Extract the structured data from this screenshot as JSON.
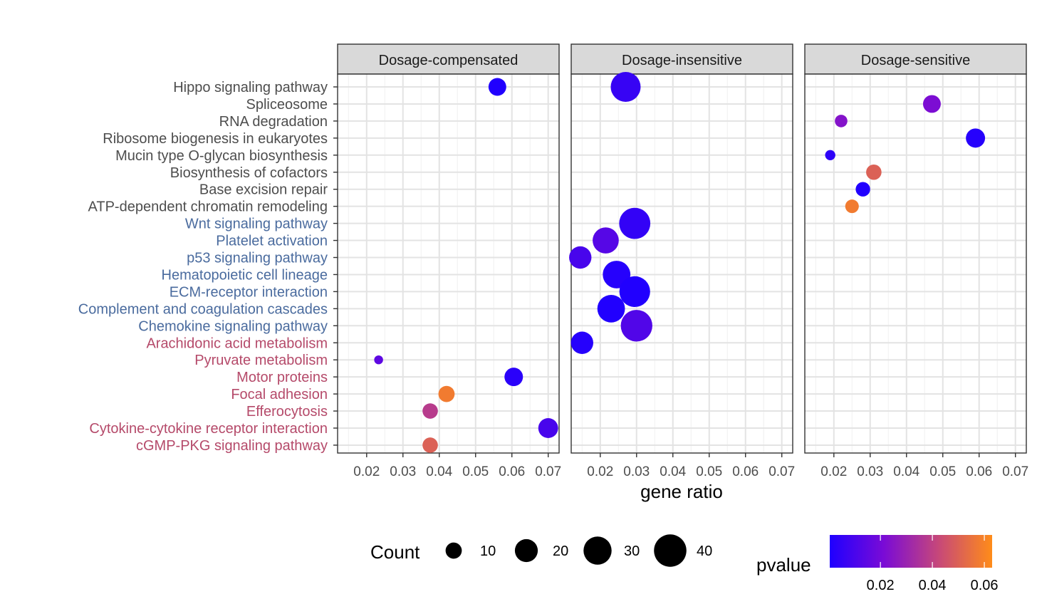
{
  "chart_data": {
    "type": "scatter",
    "subtype": "dot-plot (faceted)",
    "title": "",
    "xlabel": "gene ratio",
    "ylabel": "",
    "xlim": [
      0.012,
      0.073
    ],
    "x_ticks": [
      "0.02",
      "0.03",
      "0.04",
      "0.05",
      "0.06",
      "0.07"
    ],
    "x_tick_values": [
      0.02,
      0.03,
      0.04,
      0.05,
      0.06,
      0.07
    ],
    "grid": true,
    "facets": [
      "Dosage-compensated",
      "Dosage-insensitive",
      "Dosage-sensitive"
    ],
    "categories": [
      {
        "label": "Hippo signaling pathway",
        "color": "#4d4d4d"
      },
      {
        "label": "Spliceosome",
        "color": "#4d4d4d"
      },
      {
        "label": "RNA degradation",
        "color": "#4d4d4d"
      },
      {
        "label": "Ribosome biogenesis in eukaryotes",
        "color": "#4d4d4d"
      },
      {
        "label": "Mucin type O-glycan biosynthesis",
        "color": "#4d4d4d"
      },
      {
        "label": "Biosynthesis of cofactors",
        "color": "#4d4d4d"
      },
      {
        "label": "Base excision repair",
        "color": "#4d4d4d"
      },
      {
        "label": "ATP-dependent chromatin remodeling",
        "color": "#4d4d4d"
      },
      {
        "label": "Wnt signaling pathway",
        "color": "#4a6b9e"
      },
      {
        "label": "Platelet activation",
        "color": "#4a6b9e"
      },
      {
        "label": "p53 signaling pathway",
        "color": "#4a6b9e"
      },
      {
        "label": "Hematopoietic cell lineage",
        "color": "#4a6b9e"
      },
      {
        "label": "ECM-receptor interaction",
        "color": "#4a6b9e"
      },
      {
        "label": "Complement and coagulation cascades",
        "color": "#4a6b9e"
      },
      {
        "label": "Chemokine signaling pathway",
        "color": "#4a6b9e"
      },
      {
        "label": "Arachidonic acid metabolism",
        "color": "#b54a6a"
      },
      {
        "label": "Pyruvate metabolism",
        "color": "#b54a6a"
      },
      {
        "label": "Motor proteins",
        "color": "#b54a6a"
      },
      {
        "label": "Focal adhesion",
        "color": "#b54a6a"
      },
      {
        "label": "Efferocytosis",
        "color": "#b54a6a"
      },
      {
        "label": "Cytokine-cytokine receptor interaction",
        "color": "#b54a6a"
      },
      {
        "label": "cGMP-PKG signaling pathway",
        "color": "#b54a6a"
      }
    ],
    "points": [
      {
        "facet": "Dosage-compensated",
        "term": "Hippo signaling pathway",
        "x": 0.056,
        "count": 12,
        "pvalue": 0.001
      },
      {
        "facet": "Dosage-compensated",
        "term": "Pyruvate metabolism",
        "x": 0.0233,
        "count": 3,
        "pvalue": 0.015
      },
      {
        "facet": "Dosage-compensated",
        "term": "Motor proteins",
        "x": 0.0605,
        "count": 13,
        "pvalue": 0.003
      },
      {
        "facet": "Dosage-compensated",
        "term": "Focal adhesion",
        "x": 0.042,
        "count": 10,
        "pvalue": 0.058
      },
      {
        "facet": "Dosage-compensated",
        "term": "Efferocytosis",
        "x": 0.0375,
        "count": 9,
        "pvalue": 0.038
      },
      {
        "facet": "Dosage-compensated",
        "term": "Cytokine-cytokine receptor interaction",
        "x": 0.07,
        "count": 15,
        "pvalue": 0.01
      },
      {
        "facet": "Dosage-compensated",
        "term": "cGMP-PKG signaling pathway",
        "x": 0.0375,
        "count": 9,
        "pvalue": 0.05
      },
      {
        "facet": "Dosage-insensitive",
        "term": "Hippo signaling pathway",
        "x": 0.027,
        "count": 34,
        "pvalue": 0.006
      },
      {
        "facet": "Dosage-insensitive",
        "term": "Wnt signaling pathway",
        "x": 0.0295,
        "count": 37,
        "pvalue": 0.005
      },
      {
        "facet": "Dosage-insensitive",
        "term": "Platelet activation",
        "x": 0.0215,
        "count": 26,
        "pvalue": 0.013
      },
      {
        "facet": "Dosage-insensitive",
        "term": "p53 signaling pathway",
        "x": 0.0145,
        "count": 19,
        "pvalue": 0.01
      },
      {
        "facet": "Dosage-insensitive",
        "term": "Hematopoietic cell lineage",
        "x": 0.0245,
        "count": 29,
        "pvalue": 0.002
      },
      {
        "facet": "Dosage-insensitive",
        "term": "ECM-receptor interaction",
        "x": 0.0295,
        "count": 36,
        "pvalue": 0.001
      },
      {
        "facet": "Dosage-insensitive",
        "term": "Complement and coagulation cascades",
        "x": 0.023,
        "count": 29,
        "pvalue": 0.001
      },
      {
        "facet": "Dosage-insensitive",
        "term": "Chemokine signaling pathway",
        "x": 0.03,
        "count": 38,
        "pvalue": 0.012
      },
      {
        "facet": "Dosage-insensitive",
        "term": "Arachidonic acid metabolism",
        "x": 0.015,
        "count": 19,
        "pvalue": 0.002
      },
      {
        "facet": "Dosage-sensitive",
        "term": "Spliceosome",
        "x": 0.047,
        "count": 12,
        "pvalue": 0.022
      },
      {
        "facet": "Dosage-sensitive",
        "term": "RNA degradation",
        "x": 0.022,
        "count": 6,
        "pvalue": 0.024
      },
      {
        "facet": "Dosage-sensitive",
        "term": "Ribosome biogenesis in eukaryotes",
        "x": 0.059,
        "count": 14,
        "pvalue": 0.002
      },
      {
        "facet": "Dosage-sensitive",
        "term": "Mucin type O-glycan biosynthesis",
        "x": 0.019,
        "count": 4,
        "pvalue": 0.004
      },
      {
        "facet": "Dosage-sensitive",
        "term": "Biosynthesis of cofactors",
        "x": 0.031,
        "count": 9,
        "pvalue": 0.05
      },
      {
        "facet": "Dosage-sensitive",
        "term": "Base excision repair",
        "x": 0.028,
        "count": 8,
        "pvalue": 0.001
      },
      {
        "facet": "Dosage-sensitive",
        "term": "ATP-dependent chromatin remodeling",
        "x": 0.025,
        "count": 7,
        "pvalue": 0.058
      }
    ],
    "legend_count": {
      "title": "Count",
      "values": [
        10,
        20,
        30,
        40
      ],
      "labels": [
        "10",
        "20",
        "30",
        "40"
      ],
      "placement": "bottom"
    },
    "legend_pvalue": {
      "title": "pvalue",
      "range": [
        0.0005,
        0.063
      ],
      "ticks": [
        0.02,
        0.04,
        0.06
      ],
      "labels": [
        "0.02",
        "0.04",
        "0.06"
      ],
      "colors": [
        "#1f00ff",
        "#7a0bd6",
        "#c6477a",
        "#ff8c19"
      ],
      "placement": "bottom"
    }
  }
}
